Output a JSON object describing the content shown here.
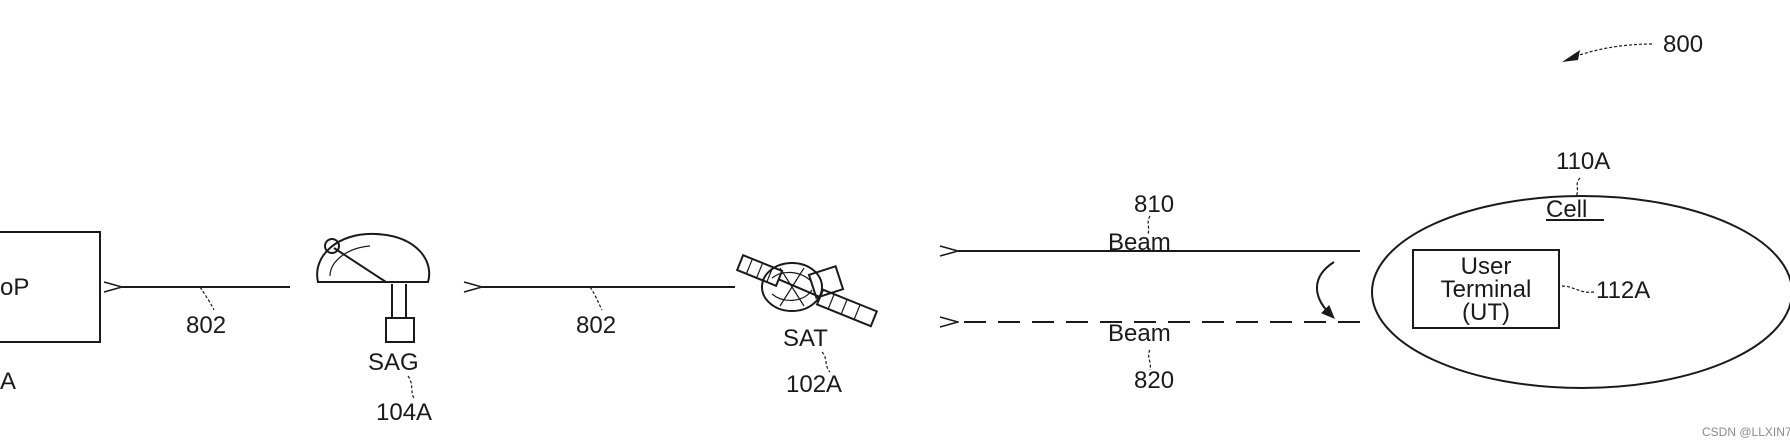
{
  "figure": {
    "ref": "800"
  },
  "pop": {
    "label": "oP",
    "ref": "A"
  },
  "links": {
    "sag_to_pop": "802",
    "sat_to_sag": "802"
  },
  "sag": {
    "label": "SAG",
    "ref": "104A"
  },
  "sat": {
    "label": "SAT",
    "ref": "102A"
  },
  "beam_forward": {
    "label": "Beam",
    "ref": "810"
  },
  "beam_return": {
    "label": "Beam",
    "ref": "820"
  },
  "cell": {
    "label": "Cell",
    "ref": "110A"
  },
  "ut": {
    "line1": "User",
    "line2": "Terminal",
    "line3": "(UT)",
    "ref": "112A"
  },
  "watermark": "CSDN @LLXIN7"
}
